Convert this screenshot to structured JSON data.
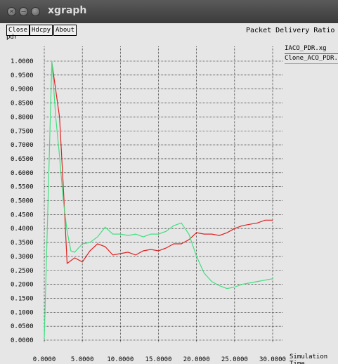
{
  "window": {
    "title": "xgraph"
  },
  "buttons": {
    "close": "Close",
    "hdcpy": "Hdcpy",
    "about": "About"
  },
  "colors": {
    "iaco": "#e02020",
    "clone_aco": "#40e080",
    "grid": "#000000",
    "background": "#e6e6e6"
  },
  "chart_data": {
    "type": "line",
    "title": "Packet Delivery Ratio",
    "ylabel": "pdr",
    "xlabel": "Simulation Time",
    "xlim": [
      0,
      30
    ],
    "ylim": [
      0,
      1.05
    ],
    "grid": true,
    "legend_position": "top-right",
    "x_ticks": [
      0,
      5,
      10,
      15,
      20,
      25,
      30
    ],
    "x_tick_labels": [
      "0.0000",
      "5.0000",
      "10.0000",
      "15.0000",
      "20.0000",
      "25.0000",
      "30.0000"
    ],
    "y_ticks": [
      0,
      0.05,
      0.1,
      0.15,
      0.2,
      0.25,
      0.3,
      0.35,
      0.4,
      0.45,
      0.5,
      0.55,
      0.6,
      0.65,
      0.7,
      0.75,
      0.8,
      0.85,
      0.9,
      0.95,
      1.0
    ],
    "y_tick_labels": [
      "0.0000",
      "0.0500",
      "0.1000",
      "0.1500",
      "0.2000",
      "0.2500",
      "0.3000",
      "0.3500",
      "0.4000",
      "0.4500",
      "0.5000",
      "0.5500",
      "0.6000",
      "0.6500",
      "0.7000",
      "0.7500",
      "0.8000",
      "0.8500",
      "0.9000",
      "0.9500",
      "1.0000"
    ],
    "series": [
      {
        "name": "IACO_PDR.xg",
        "color": "#e02020",
        "x": [
          1,
          2,
          2.5,
          3,
          3.5,
          4,
          5,
          6,
          7,
          8,
          9,
          10,
          11,
          12,
          13,
          14,
          15,
          16,
          17,
          18,
          19,
          20,
          21,
          22,
          23,
          24,
          25,
          26,
          27,
          28,
          29,
          30
        ],
        "y": [
          0.995,
          0.8,
          0.55,
          0.275,
          0.285,
          0.295,
          0.28,
          0.32,
          0.345,
          0.335,
          0.305,
          0.31,
          0.315,
          0.305,
          0.32,
          0.325,
          0.32,
          0.33,
          0.345,
          0.345,
          0.36,
          0.385,
          0.38,
          0.38,
          0.375,
          0.385,
          0.4,
          0.41,
          0.415,
          0.42,
          0.43,
          0.43
        ]
      },
      {
        "name": "Clone_ACO_PDR.xg",
        "color": "#40e080",
        "x": [
          0,
          0.5,
          1,
          1.5,
          2,
          2.5,
          3,
          3.5,
          4,
          5,
          6,
          7,
          8,
          9,
          10,
          11,
          12,
          13,
          14,
          15,
          16,
          17,
          18,
          19,
          20,
          21,
          22,
          23,
          24,
          25,
          26,
          27,
          28,
          29,
          30
        ],
        "y": [
          0.005,
          0.5,
          1.0,
          0.8,
          0.66,
          0.5,
          0.39,
          0.32,
          0.315,
          0.345,
          0.35,
          0.37,
          0.405,
          0.38,
          0.38,
          0.375,
          0.38,
          0.37,
          0.38,
          0.38,
          0.39,
          0.41,
          0.42,
          0.38,
          0.3,
          0.24,
          0.21,
          0.195,
          0.185,
          0.19,
          0.2,
          0.205,
          0.21,
          0.215,
          0.22
        ]
      }
    ]
  }
}
